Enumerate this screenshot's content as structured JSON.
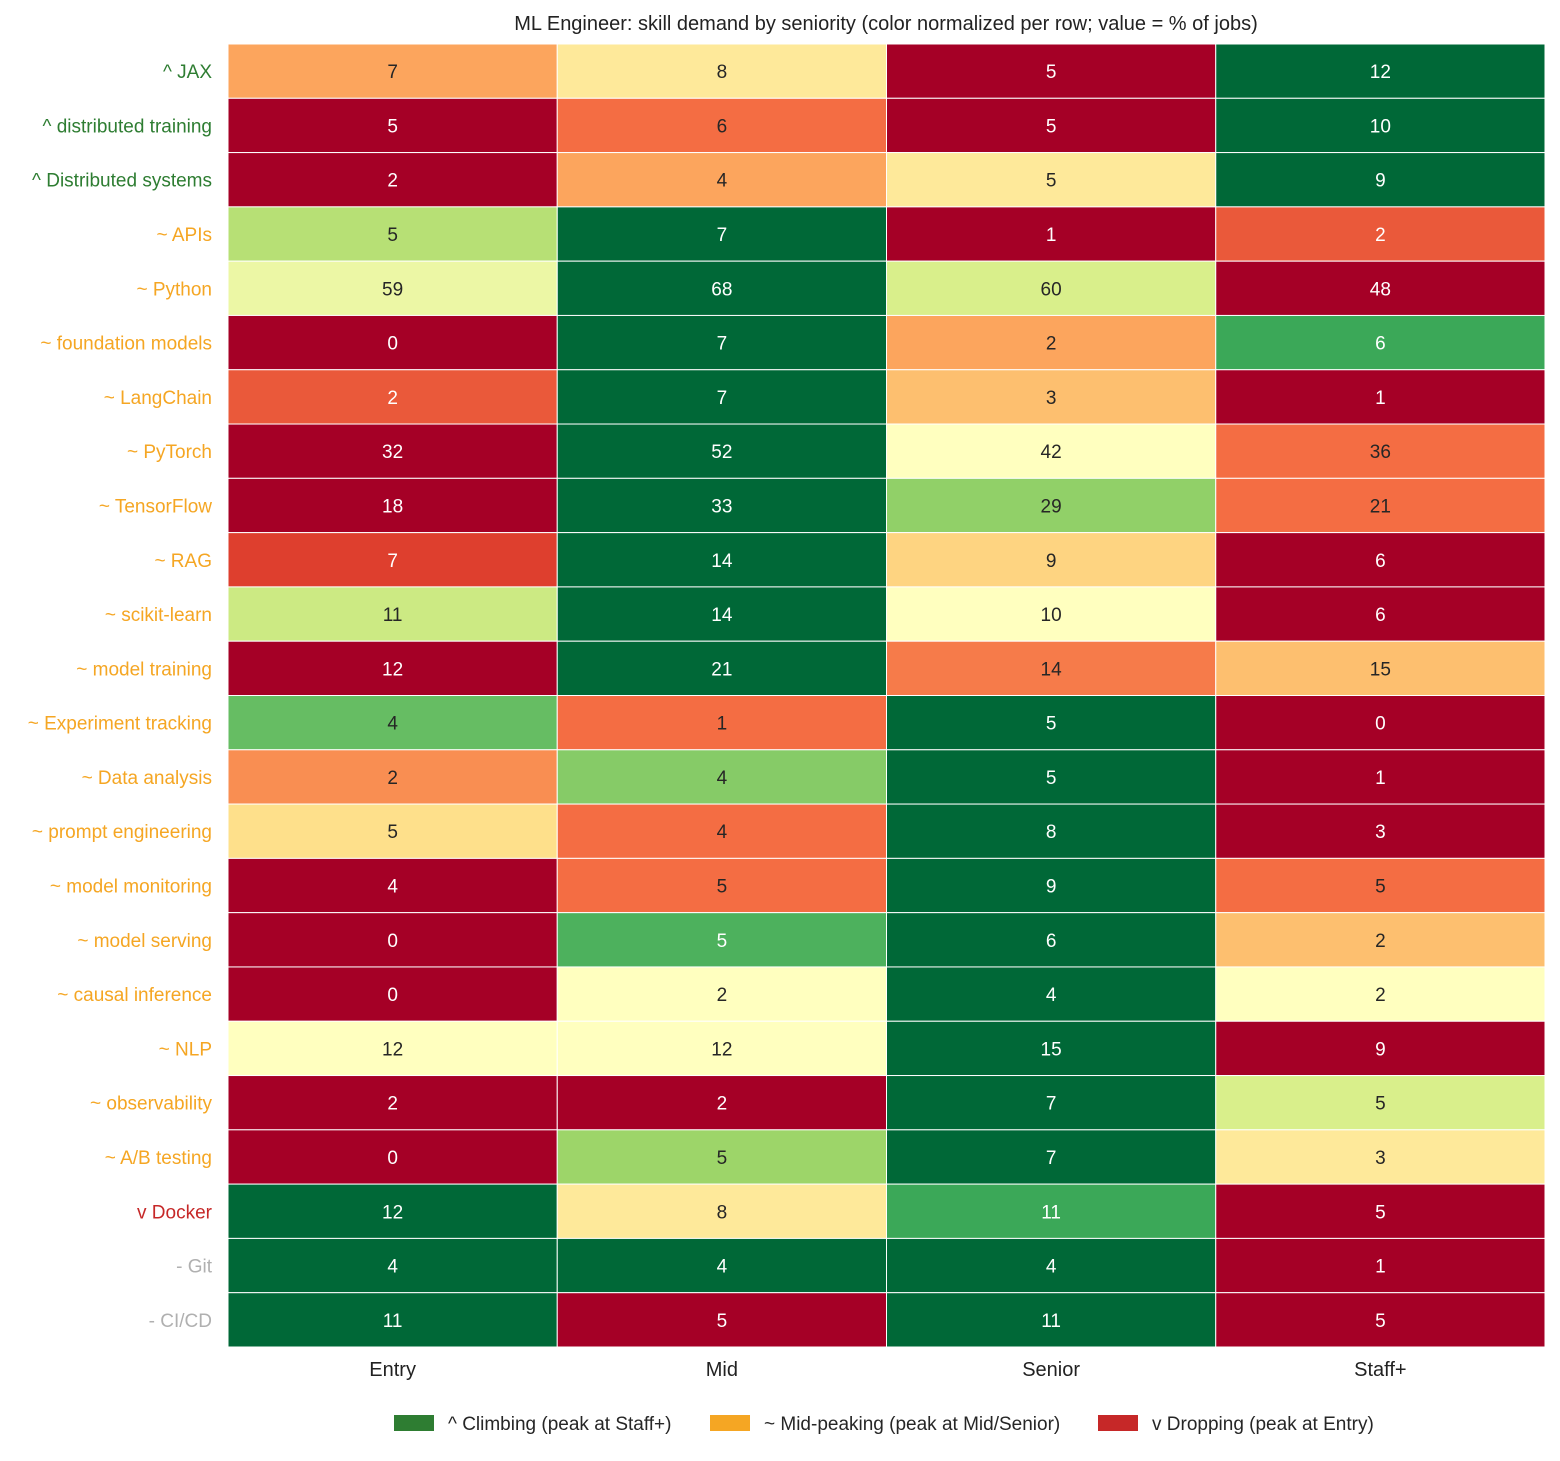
{
  "chart_data": {
    "type": "heatmap",
    "title": "ML Engineer: skill demand by seniority (color normalized per row; value = % of jobs)",
    "columns": [
      "Entry",
      "Mid",
      "Senior",
      "Staff+"
    ],
    "color_scale": "RdYlGn, normalized per row (min = red, max = green)",
    "grid": false,
    "legend_position": "bottom-center",
    "groups": {
      "climbing": {
        "marker": "^",
        "color": "#2e7d32",
        "legend_label": "^  Climbing (peak at Staff+)"
      },
      "mid": {
        "marker": "~",
        "color": "#f5a623",
        "legend_label": "~  Mid-peaking (peak at Mid/Senior)"
      },
      "dropping": {
        "marker": "v",
        "color": "#c62828",
        "legend_label": "v  Dropping (peak at Entry)"
      },
      "flat": {
        "marker": "-",
        "color": "#b0b0b0",
        "legend_label": ""
      }
    },
    "rows": [
      {
        "skill": "JAX",
        "group": "climbing",
        "values": [
          7,
          8,
          5,
          12
        ]
      },
      {
        "skill": "distributed training",
        "group": "climbing",
        "values": [
          5,
          6,
          5,
          10
        ]
      },
      {
        "skill": "Distributed systems",
        "group": "climbing",
        "values": [
          2,
          4,
          5,
          9
        ]
      },
      {
        "skill": "APIs",
        "group": "mid",
        "values": [
          5,
          7,
          1,
          2
        ]
      },
      {
        "skill": "Python",
        "group": "mid",
        "values": [
          59,
          68,
          60,
          48
        ]
      },
      {
        "skill": "foundation models",
        "group": "mid",
        "values": [
          0,
          7,
          2,
          6
        ]
      },
      {
        "skill": "LangChain",
        "group": "mid",
        "values": [
          2,
          7,
          3,
          1
        ]
      },
      {
        "skill": "PyTorch",
        "group": "mid",
        "values": [
          32,
          52,
          42,
          36
        ]
      },
      {
        "skill": "TensorFlow",
        "group": "mid",
        "values": [
          18,
          33,
          29,
          21
        ]
      },
      {
        "skill": "RAG",
        "group": "mid",
        "values": [
          7,
          14,
          9,
          6
        ]
      },
      {
        "skill": "scikit-learn",
        "group": "mid",
        "values": [
          11,
          14,
          10,
          6
        ]
      },
      {
        "skill": "model training",
        "group": "mid",
        "values": [
          12,
          21,
          14,
          15
        ]
      },
      {
        "skill": "Experiment tracking",
        "group": "mid",
        "values": [
          4,
          1,
          5,
          0
        ]
      },
      {
        "skill": "Data analysis",
        "group": "mid",
        "values": [
          2,
          4,
          5,
          1
        ]
      },
      {
        "skill": "prompt engineering",
        "group": "mid",
        "values": [
          5,
          4,
          8,
          3
        ]
      },
      {
        "skill": "model monitoring",
        "group": "mid",
        "values": [
          4,
          5,
          9,
          5
        ]
      },
      {
        "skill": "model serving",
        "group": "mid",
        "values": [
          0,
          5,
          6,
          2
        ]
      },
      {
        "skill": "causal inference",
        "group": "mid",
        "values": [
          0,
          2,
          4,
          2
        ]
      },
      {
        "skill": "NLP",
        "group": "mid",
        "values": [
          12,
          12,
          15,
          9
        ]
      },
      {
        "skill": "observability",
        "group": "mid",
        "values": [
          2,
          2,
          7,
          5
        ]
      },
      {
        "skill": "A/B testing",
        "group": "mid",
        "values": [
          0,
          5,
          7,
          3
        ]
      },
      {
        "skill": "Docker",
        "group": "dropping",
        "values": [
          12,
          8,
          11,
          5
        ]
      },
      {
        "skill": "Git",
        "group": "flat",
        "values": [
          4,
          4,
          4,
          1
        ]
      },
      {
        "skill": "CI/CD",
        "group": "flat",
        "values": [
          11,
          5,
          11,
          5
        ]
      }
    ]
  }
}
